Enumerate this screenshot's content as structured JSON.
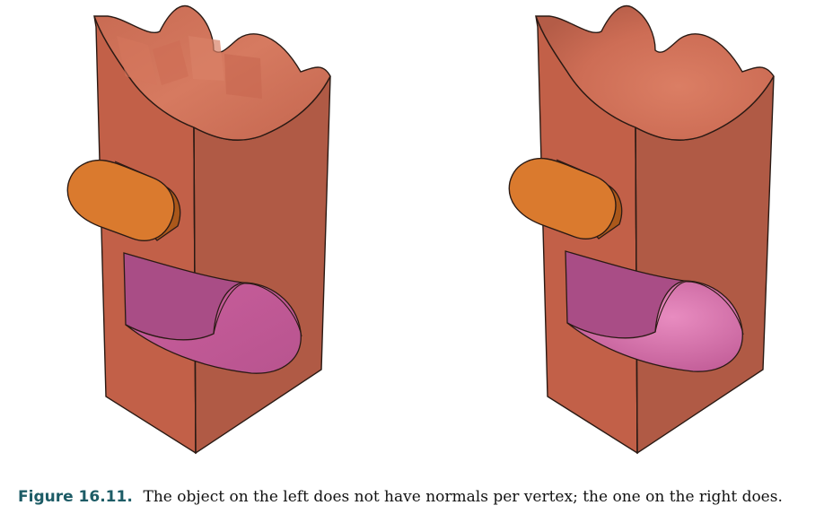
{
  "figure": {
    "caption_label": "Figure 16.11.",
    "caption_text": "The object on the left does not have normals per vertex; the one on the right does."
  },
  "colors": {
    "body_front": "#c26048",
    "body_side": "#b05a45",
    "body_dark": "#a54c3a",
    "body_top_light": "#d8775f",
    "knob_face": "#da7a2e",
    "knob_side": "#c86a22",
    "cut_light": "#e07ab3",
    "cut_mid": "#cf609f",
    "cut_dark": "#a94d86",
    "outline": "#2a1a14"
  }
}
